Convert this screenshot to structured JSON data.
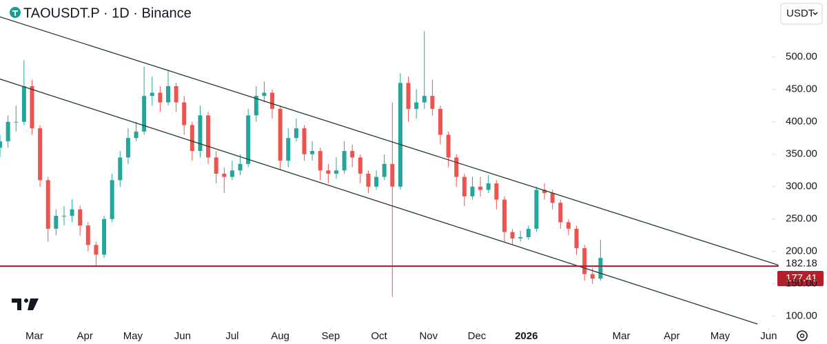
{
  "chart_data": {
    "type": "candlestick",
    "title": "TAOUSDT.P · 1D · Binance",
    "currency": "USDT",
    "up_color": "#26a69a",
    "down_color": "#ef5350",
    "x": [
      0,
      5,
      10,
      15,
      20,
      25,
      30,
      35,
      40,
      45,
      50,
      55,
      60,
      65,
      70,
      75,
      80,
      85,
      90,
      95,
      100,
      105,
      110,
      115,
      120,
      125,
      130,
      135,
      140,
      145,
      150,
      155,
      160,
      165,
      170,
      175,
      180,
      185,
      190,
      195,
      200,
      205,
      210,
      215,
      220,
      225,
      230,
      235,
      240,
      245,
      250,
      255,
      260,
      265,
      270,
      275,
      280,
      285,
      290,
      295,
      300,
      305,
      310,
      315,
      320,
      325,
      330,
      335,
      340,
      345,
      350,
      355,
      360,
      365,
      370,
      375
    ],
    "open": [
      360,
      370,
      400,
      400,
      455,
      390,
      310,
      235,
      255,
      255,
      265,
      240,
      210,
      195,
      250,
      310,
      345,
      375,
      385,
      440,
      445,
      430,
      455,
      430,
      395,
      355,
      410,
      345,
      320,
      315,
      325,
      335,
      410,
      440,
      445,
      420,
      340,
      375,
      390,
      350,
      355,
      325,
      320,
      325,
      355,
      345,
      320,
      300,
      315,
      335,
      300,
      460,
      420,
      430,
      440,
      420,
      380,
      345,
      315,
      285,
      300,
      295,
      305,
      280,
      230,
      220,
      222,
      235,
      295,
      290,
      275,
      245,
      235,
      205,
      165,
      158
    ],
    "high": [
      380,
      410,
      425,
      495,
      465,
      395,
      315,
      265,
      270,
      280,
      270,
      245,
      215,
      255,
      320,
      355,
      390,
      400,
      485,
      470,
      455,
      480,
      460,
      440,
      400,
      425,
      415,
      355,
      330,
      340,
      350,
      420,
      455,
      462,
      450,
      425,
      390,
      405,
      395,
      370,
      360,
      335,
      345,
      370,
      365,
      350,
      325,
      325,
      350,
      430,
      475,
      470,
      450,
      540,
      465,
      425,
      385,
      350,
      320,
      315,
      315,
      318,
      310,
      285,
      235,
      232,
      240,
      300,
      305,
      295,
      280,
      250,
      240,
      210,
      175,
      218
    ],
    "low": [
      345,
      360,
      385,
      395,
      380,
      300,
      215,
      225,
      240,
      245,
      225,
      200,
      178,
      190,
      245,
      300,
      335,
      370,
      380,
      425,
      415,
      425,
      415,
      380,
      340,
      345,
      335,
      305,
      290,
      310,
      318,
      330,
      400,
      430,
      405,
      325,
      330,
      370,
      340,
      340,
      310,
      305,
      312,
      320,
      330,
      305,
      290,
      295,
      310,
      130,
      295,
      400,
      405,
      420,
      410,
      365,
      330,
      300,
      270,
      280,
      285,
      290,
      265,
      215,
      210,
      215,
      218,
      230,
      280,
      265,
      235,
      225,
      195,
      155,
      150,
      155
    ],
    "close": [
      370,
      400,
      400,
      455,
      390,
      310,
      235,
      255,
      255,
      265,
      240,
      210,
      195,
      250,
      310,
      345,
      375,
      385,
      440,
      445,
      430,
      455,
      430,
      395,
      355,
      410,
      345,
      320,
      315,
      325,
      335,
      410,
      440,
      445,
      420,
      340,
      375,
      390,
      350,
      355,
      325,
      320,
      325,
      355,
      345,
      320,
      300,
      315,
      335,
      300,
      460,
      420,
      430,
      440,
      420,
      380,
      345,
      315,
      285,
      300,
      295,
      305,
      280,
      230,
      220,
      222,
      235,
      295,
      290,
      275,
      245,
      235,
      205,
      165,
      158,
      190
    ],
    "xlim": [
      0,
      482
    ],
    "xticks": [
      {
        "value": 21.5,
        "label": "Mar"
      },
      {
        "value": 53,
        "label": "Apr"
      },
      {
        "value": 83,
        "label": "May"
      },
      {
        "value": 114,
        "label": "Jun"
      },
      {
        "value": 145,
        "label": "Jul"
      },
      {
        "value": 175,
        "label": "Aug"
      },
      {
        "value": 206.5,
        "label": "Sep"
      },
      {
        "value": 236.7,
        "label": "Oct"
      },
      {
        "value": 267.6,
        "label": "Nov"
      },
      {
        "value": 297.8,
        "label": "Dec"
      },
      {
        "value": 328.7,
        "label": "2026"
      },
      {
        "value": 388,
        "label": "Mar"
      },
      {
        "value": 419.5,
        "label": "Apr"
      },
      {
        "value": 449.7,
        "label": "May"
      },
      {
        "value": 480,
        "label": "Jun"
      }
    ],
    "ylim": [
      88,
      588
    ],
    "yticks": [
      {
        "value": 100,
        "label": "100.00"
      },
      {
        "value": 150,
        "label": "150.00"
      },
      {
        "value": 200,
        "label": "200.00"
      },
      {
        "value": 250,
        "label": "250.00"
      },
      {
        "value": 300,
        "label": "300.00"
      },
      {
        "value": 350,
        "label": "350.00"
      },
      {
        "value": 400,
        "label": "400.00"
      },
      {
        "value": 450,
        "label": "450.00"
      },
      {
        "value": 500,
        "label": "500.00"
      }
    ],
    "last_price": 182.18,
    "price_line": {
      "value": 177.41,
      "color": "#b2202a"
    },
    "trendlines": [
      {
        "x": [
          0,
          486
        ],
        "y": [
          562,
          179
        ],
        "color": "#1f3a2e"
      },
      {
        "x": [
          0,
          473
        ],
        "y": [
          466,
          88
        ],
        "color": "#1f3a2e"
      }
    ]
  }
}
